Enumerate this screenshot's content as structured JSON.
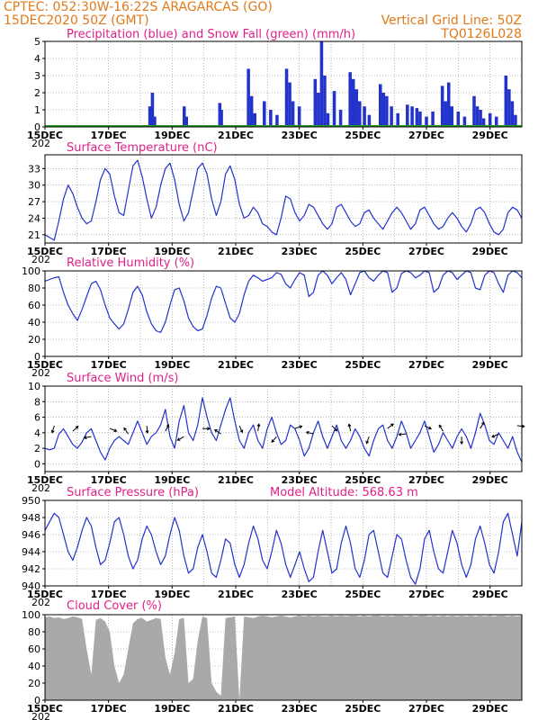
{
  "header": {
    "line1": "CPTEC:  052:30W-16:22S  ARAGARCAS (GO)",
    "line2": "15DEC2020 50Z (GMT)",
    "grid_note": "Vertical Grid Line: 50Z",
    "model_id": "TQ0126L028"
  },
  "x_day_labels": [
    "15DEC",
    "17DEC",
    "19DEC",
    "21DEC",
    "23DEC",
    "25DEC",
    "27DEC",
    "29DEC"
  ],
  "x_year_stub": "202",
  "colors": {
    "series": "#2233cc",
    "snow": "#229922",
    "cloud": "#a9a9a9",
    "title": "#e0208a",
    "header": "#e07a1a"
  },
  "chart_data": [
    {
      "id": "precip",
      "type": "bar",
      "title": "Precipitation (blue) and Snow Fall (green) (mm/h)",
      "ylim": [
        0,
        5
      ],
      "yticks": [
        "0",
        "1",
        "2",
        "3",
        "4",
        "5"
      ],
      "x_range_days": [
        0,
        15
      ],
      "series": [
        {
          "name": "Precipitation",
          "points": [
            [
              3.3,
              1.2
            ],
            [
              3.38,
              2.0
            ],
            [
              3.45,
              0.6
            ],
            [
              4.38,
              1.2
            ],
            [
              4.45,
              0.6
            ],
            [
              5.5,
              1.4
            ],
            [
              5.55,
              1.0
            ],
            [
              6.4,
              3.4
            ],
            [
              6.5,
              1.8
            ],
            [
              6.6,
              0.8
            ],
            [
              6.9,
              1.5
            ],
            [
              7.1,
              1.0
            ],
            [
              7.3,
              0.7
            ],
            [
              7.6,
              3.4
            ],
            [
              7.7,
              2.6
            ],
            [
              7.8,
              1.5
            ],
            [
              8.0,
              1.2
            ],
            [
              8.5,
              2.8
            ],
            [
              8.6,
              2.0
            ],
            [
              8.7,
              5.0
            ],
            [
              8.8,
              3.0
            ],
            [
              8.9,
              0.8
            ],
            [
              9.1,
              2.1
            ],
            [
              9.3,
              1.0
            ],
            [
              9.6,
              3.2
            ],
            [
              9.7,
              2.8
            ],
            [
              9.8,
              2.2
            ],
            [
              9.9,
              1.5
            ],
            [
              10.05,
              1.2
            ],
            [
              10.2,
              0.7
            ],
            [
              10.55,
              2.5
            ],
            [
              10.65,
              2.0
            ],
            [
              10.75,
              1.8
            ],
            [
              10.9,
              1.2
            ],
            [
              11.1,
              0.8
            ],
            [
              11.4,
              1.3
            ],
            [
              11.55,
              1.2
            ],
            [
              11.7,
              1.1
            ],
            [
              11.8,
              0.9
            ],
            [
              12.0,
              0.6
            ],
            [
              12.2,
              0.9
            ],
            [
              12.5,
              2.4
            ],
            [
              12.6,
              1.5
            ],
            [
              12.7,
              2.6
            ],
            [
              12.8,
              1.2
            ],
            [
              13.0,
              0.9
            ],
            [
              13.2,
              0.6
            ],
            [
              13.5,
              1.8
            ],
            [
              13.6,
              1.2
            ],
            [
              13.7,
              1.0
            ],
            [
              13.8,
              0.5
            ],
            [
              14.0,
              0.8
            ],
            [
              14.2,
              0.6
            ],
            [
              14.5,
              3.0
            ],
            [
              14.6,
              2.2
            ],
            [
              14.7,
              1.5
            ],
            [
              14.8,
              0.7
            ]
          ]
        },
        {
          "name": "Snow Fall",
          "points": [
            [
              0,
              0.03
            ],
            [
              15,
              0.03
            ]
          ]
        }
      ]
    },
    {
      "id": "temp",
      "type": "line",
      "title": "Surface Temperature (nC)",
      "ylim": [
        19.5,
        35.5
      ],
      "yticks": [
        "21",
        "24",
        "27",
        "30",
        "33"
      ],
      "ytick_values": [
        21,
        24,
        27,
        30,
        33
      ],
      "x_range_days": [
        0,
        15
      ],
      "values": [
        21.0,
        20.5,
        20.0,
        23.5,
        27.5,
        30.0,
        28.5,
        26.0,
        24.0,
        23.0,
        23.5,
        27.0,
        31.0,
        33.0,
        32.0,
        28.0,
        25.0,
        24.5,
        29.0,
        33.5,
        34.5,
        31.5,
        27.5,
        24.0,
        26.0,
        30.0,
        33.0,
        34.0,
        31.0,
        26.5,
        23.5,
        25.0,
        29.0,
        33.0,
        34.0,
        32.0,
        27.5,
        24.5,
        27.0,
        32.0,
        33.5,
        31.0,
        26.5,
        24.0,
        24.5,
        26.0,
        25.0,
        23.0,
        22.5,
        21.5,
        21.0,
        24.0,
        28.0,
        27.5,
        25.0,
        23.5,
        24.5,
        26.5,
        26.0,
        24.5,
        23.0,
        22.0,
        23.0,
        26.0,
        26.5,
        25.0,
        23.5,
        22.5,
        23.0,
        25.0,
        25.5,
        24.0,
        23.0,
        22.0,
        23.5,
        25.0,
        26.0,
        25.0,
        23.5,
        22.0,
        23.0,
        25.5,
        26.0,
        24.5,
        23.0,
        22.0,
        22.5,
        24.0,
        25.0,
        24.0,
        22.5,
        21.5,
        23.0,
        25.5,
        26.0,
        25.0,
        23.0,
        21.5,
        21.0,
        22.0,
        25.0,
        26.0,
        25.5,
        24.0
      ]
    },
    {
      "id": "rh",
      "type": "line",
      "title": "Relative Humidity (%)",
      "ylim": [
        0,
        100
      ],
      "yticks": [
        "0",
        "20",
        "40",
        "60",
        "80",
        "100"
      ],
      "ytick_values": [
        0,
        20,
        40,
        60,
        80,
        100
      ],
      "x_range_days": [
        0,
        15
      ],
      "values": [
        88,
        90,
        92,
        93,
        75,
        60,
        50,
        42,
        55,
        70,
        85,
        88,
        78,
        60,
        45,
        38,
        32,
        38,
        55,
        75,
        82,
        72,
        52,
        38,
        30,
        28,
        40,
        60,
        78,
        80,
        65,
        45,
        35,
        30,
        32,
        48,
        68,
        82,
        80,
        62,
        45,
        40,
        50,
        72,
        88,
        95,
        92,
        88,
        90,
        92,
        98,
        96,
        85,
        80,
        90,
        98,
        95,
        70,
        75,
        95,
        100,
        95,
        85,
        92,
        98,
        90,
        72,
        85,
        98,
        100,
        92,
        88,
        95,
        100,
        98,
        75,
        80,
        97,
        100,
        98,
        92,
        95,
        100,
        98,
        75,
        80,
        95,
        100,
        98,
        90,
        95,
        100,
        98,
        80,
        78,
        95,
        100,
        98,
        85,
        75,
        95,
        100,
        98,
        92
      ]
    },
    {
      "id": "wind",
      "type": "line",
      "title": "Surface Wind (m/s)",
      "ylim": [
        -1,
        10
      ],
      "yticks": [
        "0",
        "2",
        "4",
        "6",
        "8",
        "10"
      ],
      "ytick_values": [
        0,
        2,
        4,
        6,
        8,
        10
      ],
      "x_range_days": [
        0,
        15
      ],
      "values": [
        2.0,
        1.8,
        2.0,
        3.8,
        4.5,
        3.5,
        2.5,
        2.0,
        2.8,
        4.0,
        4.5,
        3.0,
        1.5,
        0.5,
        2.0,
        3.0,
        3.5,
        3.0,
        2.5,
        4.0,
        5.5,
        4.0,
        2.5,
        3.5,
        4.0,
        5.0,
        7.0,
        3.5,
        2.0,
        5.5,
        7.5,
        4.0,
        3.0,
        5.0,
        8.5,
        6.0,
        4.0,
        3.0,
        5.0,
        7.0,
        8.5,
        5.5,
        3.0,
        2.0,
        4.0,
        5.0,
        3.0,
        2.0,
        4.5,
        6.0,
        4.0,
        2.5,
        3.0,
        5.0,
        4.5,
        3.0,
        1.0,
        2.0,
        4.0,
        5.5,
        3.5,
        2.0,
        3.5,
        5.0,
        3.0,
        2.0,
        3.0,
        4.5,
        3.5,
        2.0,
        1.0,
        3.0,
        4.5,
        5.0,
        3.0,
        2.0,
        3.5,
        5.5,
        4.0,
        2.0,
        3.0,
        4.0,
        5.5,
        3.5,
        1.5,
        2.5,
        4.0,
        3.0,
        2.0,
        3.5,
        4.5,
        3.5,
        2.0,
        4.0,
        6.5,
        5.0,
        3.0,
        2.5,
        4.0,
        3.0,
        2.0,
        3.5,
        1.5,
        0.2
      ]
    },
    {
      "id": "pressure",
      "type": "line",
      "title": "Surface Pressure (hPa)",
      "annotation": "Model Altitude: 568.63 m",
      "ylim": [
        940,
        950
      ],
      "yticks": [
        "940",
        "942",
        "944",
        "946",
        "948",
        "950"
      ],
      "ytick_values": [
        940,
        942,
        944,
        946,
        948,
        950
      ],
      "x_range_days": [
        0,
        15
      ],
      "values": [
        946.5,
        947.5,
        948.5,
        948.0,
        946.0,
        944.0,
        943.0,
        944.5,
        946.5,
        948.0,
        947.0,
        944.5,
        942.5,
        943.0,
        945.0,
        947.5,
        948.0,
        946.0,
        943.5,
        942.0,
        943.0,
        945.5,
        947.0,
        946.0,
        944.0,
        942.5,
        943.5,
        946.0,
        948.0,
        946.5,
        943.5,
        941.5,
        942.0,
        944.5,
        946.0,
        944.0,
        941.5,
        941.0,
        943.0,
        945.5,
        945.0,
        942.5,
        941.0,
        942.5,
        945.0,
        947.0,
        945.5,
        943.0,
        942.0,
        944.0,
        946.5,
        945.0,
        942.5,
        941.0,
        942.5,
        944.0,
        942.0,
        940.5,
        941.0,
        944.0,
        946.5,
        944.0,
        941.5,
        942.0,
        945.0,
        947.0,
        945.0,
        942.0,
        941.0,
        943.0,
        946.0,
        946.5,
        944.0,
        941.5,
        941.0,
        943.5,
        946.0,
        945.5,
        943.0,
        941.0,
        940.2,
        942.0,
        945.5,
        946.5,
        944.0,
        942.0,
        941.5,
        944.0,
        946.5,
        945.0,
        942.5,
        941.0,
        942.5,
        945.5,
        947.0,
        945.0,
        942.5,
        941.5,
        944.0,
        947.5,
        948.5,
        946.0,
        943.5,
        947.5
      ]
    },
    {
      "id": "cloud",
      "type": "area",
      "title": "Cloud Cover (%)",
      "ylim": [
        0,
        100
      ],
      "yticks": [
        "0",
        "20",
        "40",
        "60",
        "80",
        "100"
      ],
      "ytick_values": [
        0,
        20,
        40,
        60,
        80,
        100
      ],
      "x_range_days": [
        0,
        15
      ],
      "values": [
        97,
        98,
        96,
        97,
        95,
        96,
        98,
        97,
        95,
        60,
        30,
        94,
        96,
        92,
        80,
        40,
        20,
        30,
        60,
        90,
        95,
        96,
        92,
        94,
        96,
        95,
        50,
        30,
        55,
        95,
        96,
        20,
        25,
        70,
        98,
        96,
        20,
        10,
        5,
        96,
        97,
        98,
        0,
        98,
        97,
        96,
        98,
        99,
        98,
        97,
        98,
        99,
        98,
        97,
        98,
        99,
        98,
        99,
        98,
        99,
        98,
        98,
        99,
        98,
        99,
        98,
        99,
        99,
        98,
        99,
        98,
        99,
        99,
        98,
        99,
        98,
        99,
        99,
        98,
        99,
        98,
        99,
        99,
        98,
        99,
        98,
        99,
        98,
        99,
        98,
        99,
        98,
        99,
        98,
        99,
        98,
        99,
        98,
        99,
        99,
        98,
        99,
        98,
        99
      ]
    }
  ]
}
